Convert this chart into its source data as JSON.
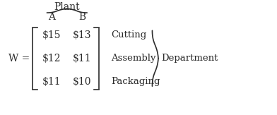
{
  "title": "Plant",
  "col_labels": [
    "A",
    "B"
  ],
  "row_labels": [
    "Cutting",
    "Assembly",
    "Packaging"
  ],
  "matrix": [
    [
      "$15",
      "$13"
    ],
    [
      "$12",
      "$11"
    ],
    [
      "$11",
      "$10"
    ]
  ],
  "W_label": "W =",
  "right_label": "Department",
  "bg_color": "#ffffff",
  "text_color": "#2c2c2c",
  "font_size": 10,
  "label_font_size": 10
}
